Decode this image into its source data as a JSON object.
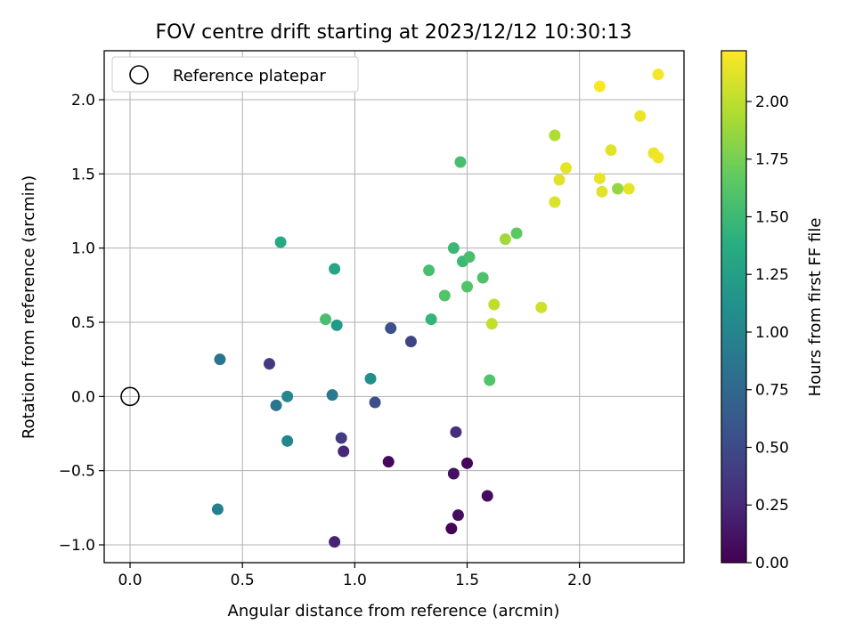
{
  "chart_data": {
    "type": "scatter",
    "title": "FOV centre drift starting at 2023/12/12 10:30:13",
    "xlabel": "Angular distance from reference (arcmin)",
    "ylabel": "Rotation from reference (arcmin)",
    "xlim": [
      -0.115,
      2.465
    ],
    "ylim": [
      -1.12,
      2.33
    ],
    "xticks": [
      0.0,
      0.5,
      1.0,
      1.5,
      2.0
    ],
    "xtick_labels": [
      "0.0",
      "0.5",
      "1.0",
      "1.5",
      "2.0"
    ],
    "yticks": [
      -1.0,
      -0.5,
      0.0,
      0.5,
      1.0,
      1.5,
      2.0
    ],
    "ytick_labels": [
      "−1.0",
      "−0.5",
      "0.0",
      "0.5",
      "1.0",
      "1.5",
      "2.0"
    ],
    "grid": true,
    "legend": {
      "location": "top-left",
      "entries": [
        {
          "label": "Reference platepar",
          "marker": "open-circle",
          "color": "#000000"
        }
      ]
    },
    "reference_point": {
      "x": 0.0,
      "y": 0.0
    },
    "colorbar": {
      "label": "Hours from first FF file",
      "colormap": "viridis",
      "range": [
        0.0,
        2.22
      ],
      "ticks": [
        0.0,
        0.25,
        0.5,
        0.75,
        1.0,
        1.25,
        1.5,
        1.75,
        2.0
      ],
      "tick_labels": [
        "0.00",
        "0.25",
        "0.50",
        "0.75",
        "1.00",
        "1.25",
        "1.50",
        "1.75",
        "2.00"
      ]
    },
    "points": [
      {
        "x": 1.43,
        "y": -0.89,
        "hours": 0.02
      },
      {
        "x": 1.5,
        "y": -0.45,
        "hours": 0.03
      },
      {
        "x": 1.15,
        "y": -0.44,
        "hours": 0.04
      },
      {
        "x": 1.59,
        "y": -0.67,
        "hours": 0.06
      },
      {
        "x": 1.46,
        "y": -0.8,
        "hours": 0.08
      },
      {
        "x": 1.44,
        "y": -0.52,
        "hours": 0.1
      },
      {
        "x": 0.91,
        "y": -0.98,
        "hours": 0.22
      },
      {
        "x": 0.95,
        "y": -0.37,
        "hours": 0.25
      },
      {
        "x": 1.45,
        "y": -0.24,
        "hours": 0.3
      },
      {
        "x": 0.94,
        "y": -0.28,
        "hours": 0.38
      },
      {
        "x": 0.62,
        "y": 0.22,
        "hours": 0.38
      },
      {
        "x": 1.25,
        "y": 0.37,
        "hours": 0.45
      },
      {
        "x": 1.09,
        "y": -0.04,
        "hours": 0.52
      },
      {
        "x": 1.16,
        "y": 0.46,
        "hours": 0.55
      },
      {
        "x": 0.65,
        "y": -0.06,
        "hours": 0.85
      },
      {
        "x": 0.4,
        "y": 0.25,
        "hours": 0.85
      },
      {
        "x": 0.9,
        "y": 0.01,
        "hours": 0.9
      },
      {
        "x": 0.39,
        "y": -0.76,
        "hours": 0.95
      },
      {
        "x": 0.7,
        "y": -0.3,
        "hours": 1.0
      },
      {
        "x": 0.7,
        "y": 0.0,
        "hours": 1.02
      },
      {
        "x": 1.07,
        "y": 0.12,
        "hours": 1.1
      },
      {
        "x": 0.92,
        "y": 0.48,
        "hours": 1.2
      },
      {
        "x": 0.91,
        "y": 0.86,
        "hours": 1.3
      },
      {
        "x": 0.67,
        "y": 1.04,
        "hours": 1.35
      },
      {
        "x": 1.34,
        "y": 0.52,
        "hours": 1.45
      },
      {
        "x": 1.44,
        "y": 1.0,
        "hours": 1.48
      },
      {
        "x": 1.48,
        "y": 0.91,
        "hours": 1.5
      },
      {
        "x": 0.87,
        "y": 0.52,
        "hours": 1.55
      },
      {
        "x": 1.33,
        "y": 0.85,
        "hours": 1.55
      },
      {
        "x": 1.51,
        "y": 0.94,
        "hours": 1.55
      },
      {
        "x": 1.4,
        "y": 0.68,
        "hours": 1.6
      },
      {
        "x": 1.47,
        "y": 1.58,
        "hours": 1.55
      },
      {
        "x": 1.57,
        "y": 0.8,
        "hours": 1.58
      },
      {
        "x": 1.5,
        "y": 0.74,
        "hours": 1.6
      },
      {
        "x": 1.6,
        "y": 0.11,
        "hours": 1.6
      },
      {
        "x": 1.72,
        "y": 1.1,
        "hours": 1.65
      },
      {
        "x": 1.67,
        "y": 1.06,
        "hours": 1.9
      },
      {
        "x": 1.62,
        "y": 0.62,
        "hours": 2.0
      },
      {
        "x": 1.61,
        "y": 0.49,
        "hours": 2.02
      },
      {
        "x": 1.83,
        "y": 0.6,
        "hours": 2.05
      },
      {
        "x": 1.89,
        "y": 1.76,
        "hours": 1.95
      },
      {
        "x": 2.17,
        "y": 1.4,
        "hours": 1.85
      },
      {
        "x": 1.89,
        "y": 1.31,
        "hours": 2.1
      },
      {
        "x": 1.91,
        "y": 1.46,
        "hours": 2.12
      },
      {
        "x": 1.94,
        "y": 1.54,
        "hours": 2.14
      },
      {
        "x": 2.1,
        "y": 1.38,
        "hours": 2.12
      },
      {
        "x": 2.09,
        "y": 1.47,
        "hours": 2.15
      },
      {
        "x": 2.14,
        "y": 1.66,
        "hours": 2.12
      },
      {
        "x": 2.22,
        "y": 1.4,
        "hours": 2.14
      },
      {
        "x": 2.27,
        "y": 1.89,
        "hours": 2.16
      },
      {
        "x": 2.33,
        "y": 1.64,
        "hours": 2.16
      },
      {
        "x": 2.35,
        "y": 1.61,
        "hours": 2.18
      },
      {
        "x": 2.35,
        "y": 2.17,
        "hours": 2.2
      },
      {
        "x": 2.09,
        "y": 2.09,
        "hours": 2.22
      }
    ]
  }
}
